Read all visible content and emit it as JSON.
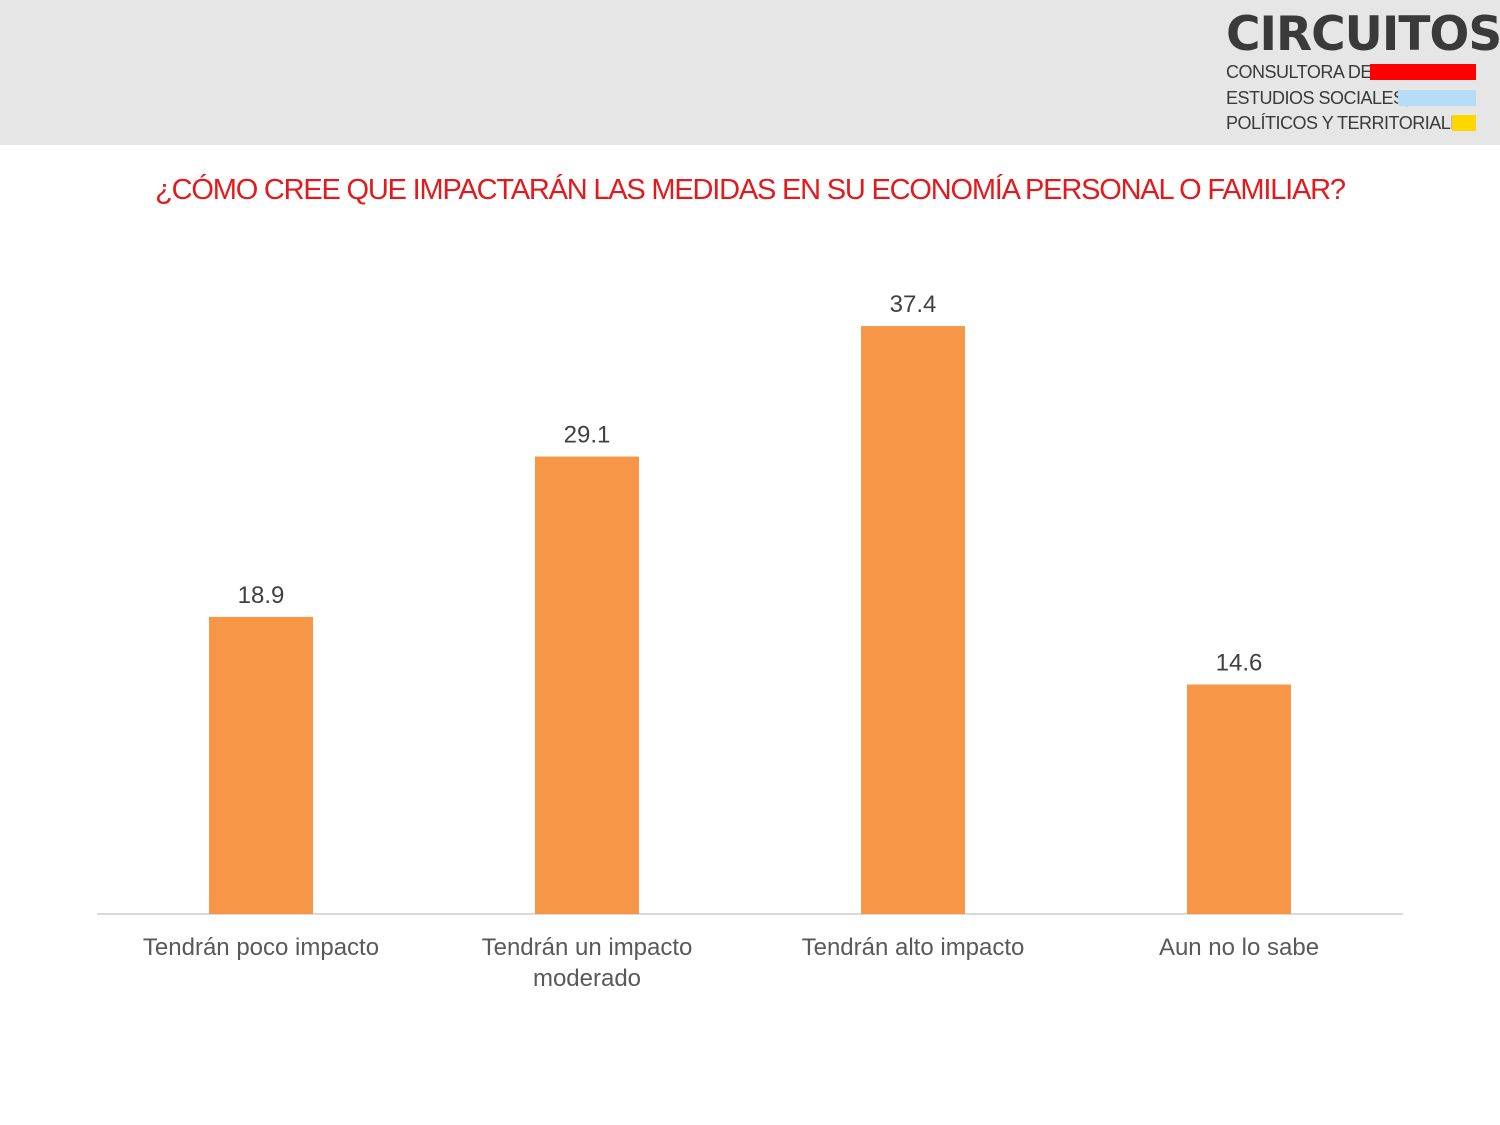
{
  "header": {
    "brand": "CIRCUITOS",
    "tagline_lines": [
      "CONSULTORA DE",
      "ESTUDIOS SOCIALES,",
      "POLÍTICOS Y TERRITORIALES"
    ],
    "tagline_colors": [
      "#ff0000",
      "#b7dcf5",
      "#ffd700"
    ]
  },
  "chart_data": {
    "type": "bar",
    "title": "¿CÓMO CREE QUE IMPACTARÁN LAS MEDIDAS EN SU ECONOMÍA PERSONAL O FAMILIAR?",
    "categories": [
      "Tendrán poco impacto",
      "Tendrán un impacto moderado",
      "Tendrán alto impacto",
      "Aun no lo sabe"
    ],
    "category_lines": [
      [
        "Tendrán poco impacto"
      ],
      [
        "Tendrán un impacto",
        "moderado"
      ],
      [
        "Tendrán alto impacto"
      ],
      [
        "Aun no lo sabe"
      ]
    ],
    "values": [
      18.9,
      29.1,
      37.4,
      14.6
    ],
    "value_labels": [
      "18.9",
      "29.1",
      "37.4",
      "14.6"
    ],
    "bar_color": "#f79646",
    "axis_color": "#d9d9d9",
    "title_color": "#e3191b",
    "grid": false,
    "legend": "none"
  }
}
